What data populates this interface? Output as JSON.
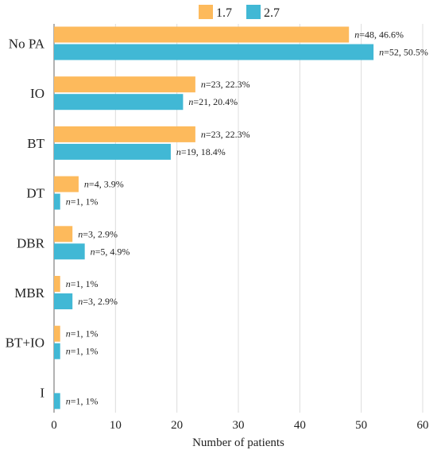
{
  "chart_data": {
    "type": "bar",
    "orientation": "horizontal",
    "categories": [
      "No PA",
      "IO",
      "BT",
      "DT",
      "DBR",
      "MBR",
      "BT+IO",
      "I"
    ],
    "series": [
      {
        "name": "1.7",
        "color": "#FDBA5C",
        "values": [
          48,
          23,
          23,
          4,
          3,
          1,
          1,
          null
        ],
        "labels": [
          "=48, 46.6%",
          "=23, 22.3%",
          "=23, 22.3%",
          "=4, 3.9%",
          "=3, 2.9%",
          "=1, 1%",
          "=1, 1%",
          null
        ]
      },
      {
        "name": "2.7",
        "color": "#41B8D5",
        "values": [
          52,
          21,
          19,
          1,
          5,
          3,
          1,
          1
        ],
        "labels": [
          "=52, 50.5%",
          "=21, 20.4%",
          "=19, 18.4%",
          "=1, 1%",
          "=5, 4.9%",
          "=3, 2.9%",
          "=1, 1%",
          "=1, 1%"
        ]
      }
    ],
    "label_prefix": "n",
    "xlabel": "Number of patients",
    "ylabel": "",
    "xlim": [
      0,
      60
    ],
    "xticks": [
      0,
      10,
      20,
      30,
      40,
      50,
      60
    ],
    "grid": "vertical",
    "legend_position": "top"
  }
}
